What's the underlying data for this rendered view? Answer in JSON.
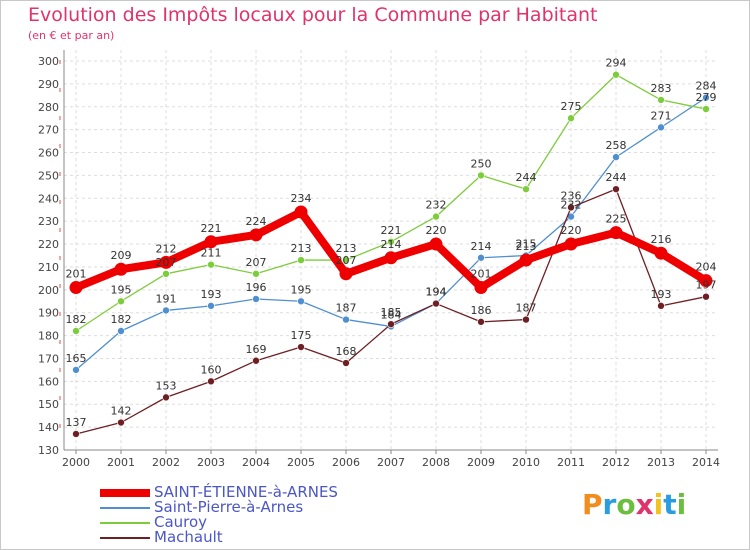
{
  "title": "Evolution des Impôts locaux pour la Commune par Habitant",
  "subtitle": "(en € et par an)",
  "logo": {
    "letters": [
      "P",
      "r",
      "o",
      "x",
      "i",
      "t",
      "i"
    ],
    "colors": [
      "#f28c1e",
      "#2a9de0",
      "#6cbf3e",
      "#e0336b",
      "#f2c21e",
      "#2a9de0",
      "#6cbf3e"
    ]
  },
  "chart_data": {
    "type": "line",
    "x": [
      "2000",
      "2001",
      "2002",
      "2003",
      "2004",
      "2005",
      "2006",
      "2007",
      "2008",
      "2009",
      "2010",
      "2011",
      "2012",
      "2013",
      "2014"
    ],
    "ylim": [
      130,
      300
    ],
    "yticks": [
      130,
      140,
      150,
      160,
      170,
      180,
      190,
      200,
      210,
      220,
      230,
      240,
      250,
      260,
      270,
      280,
      290,
      300
    ],
    "grid": true,
    "legend_position": "bottom",
    "series": [
      {
        "name": "SAINT-ÉTIENNE-à-ARNES",
        "color": "#ee0000",
        "values": [
          201,
          209,
          212,
          221,
          224,
          234,
          207,
          214,
          220,
          201,
          213,
          220,
          225,
          216,
          204
        ]
      },
      {
        "name": "Saint-Pierre-à-Arnes",
        "color": "#4f8fcf",
        "values": [
          165,
          182,
          191,
          193,
          196,
          195,
          187,
          184,
          194,
          214,
          215,
          232,
          258,
          271,
          284
        ]
      },
      {
        "name": "Cauroy",
        "color": "#7dcc3c",
        "values": [
          182,
          195,
          207,
          211,
          207,
          213,
          213,
          221,
          232,
          250,
          244,
          275,
          294,
          283,
          279
        ]
      },
      {
        "name": "Machault",
        "color": "#6e1f23",
        "values": [
          137,
          142,
          153,
          160,
          169,
          175,
          168,
          185,
          194,
          186,
          187,
          236,
          244,
          193,
          197
        ]
      }
    ]
  }
}
